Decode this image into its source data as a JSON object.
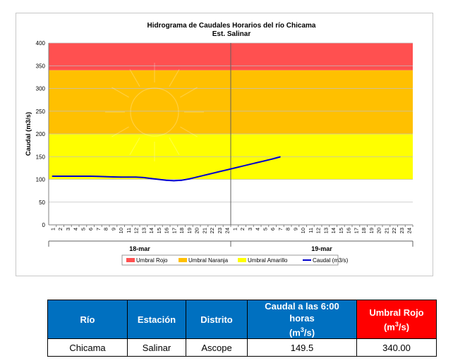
{
  "chart_data": {
    "type": "line",
    "title": "Hidrograma de Caudales Horarios del río Chicama",
    "subtitle": "Est. Salinar",
    "ylabel": "Caudal  (m3/s)",
    "ylim": [
      0,
      400
    ],
    "yticks": [
      0,
      50,
      100,
      150,
      200,
      250,
      300,
      350,
      400
    ],
    "hour_ticks": [
      "1",
      "2",
      "3",
      "4",
      "5",
      "6",
      "7",
      "8",
      "9",
      "10",
      "11",
      "12",
      "13",
      "14",
      "15",
      "16",
      "17",
      "18",
      "19",
      "20",
      "21",
      "22",
      "23",
      "24",
      "1",
      "2",
      "3",
      "4",
      "5",
      "6",
      "7",
      "8",
      "9",
      "10",
      "11",
      "12",
      "13",
      "14",
      "15",
      "16",
      "17",
      "18",
      "19",
      "20",
      "21",
      "22",
      "23",
      "24"
    ],
    "day_labels": [
      "18-mar",
      "19-mar"
    ],
    "bands": [
      {
        "name": "Umbral Rojo",
        "from": 340,
        "to": 400,
        "color": "#ff5050"
      },
      {
        "name": "Umbral Naranja",
        "from": 200,
        "to": 340,
        "color": "#ffc000"
      },
      {
        "name": "Umbral Amarillo",
        "from": 100,
        "to": 200,
        "color": "#ffff00"
      }
    ],
    "series": [
      {
        "name": "Caudal (m3/s)",
        "color": "#0000cc",
        "values": [
          107,
          107,
          107,
          107,
          107,
          107,
          106.5,
          106,
          105.5,
          105,
          105,
          105,
          104,
          102,
          100,
          98,
          97,
          98,
          101,
          105,
          109,
          113,
          117,
          121,
          125,
          129,
          133,
          137,
          141,
          145,
          149.5
        ]
      }
    ]
  },
  "legend": [
    {
      "label": "Umbral Rojo",
      "color": "#ff5050",
      "kind": "box"
    },
    {
      "label": "Umbral Naranja",
      "color": "#ffc000",
      "kind": "box"
    },
    {
      "label": "Umbral Amarillo",
      "color": "#ffff00",
      "kind": "box"
    },
    {
      "label": "Caudal (m3/s)",
      "color": "#0000cc",
      "kind": "line"
    }
  ],
  "table": {
    "headers": {
      "rio": "Río",
      "estacion": "Estación",
      "distrito": "Distrito",
      "caudal_main": "Caudal a las 6:00 horas",
      "caudal_unit_pre": "(m",
      "caudal_unit_sup": "3",
      "caudal_unit_post": "/s)",
      "umbral_main": "Umbral Rojo",
      "umbral_unit_pre": "(m",
      "umbral_unit_sup": "3",
      "umbral_unit_post": "/s)"
    },
    "row": {
      "rio": "Chicama",
      "estacion": "Salinar",
      "distrito": "Ascope",
      "caudal": "149.5",
      "umbral": "340.00"
    },
    "colors": {
      "header_blue": "#0070c0",
      "header_red": "#ff0000"
    }
  }
}
